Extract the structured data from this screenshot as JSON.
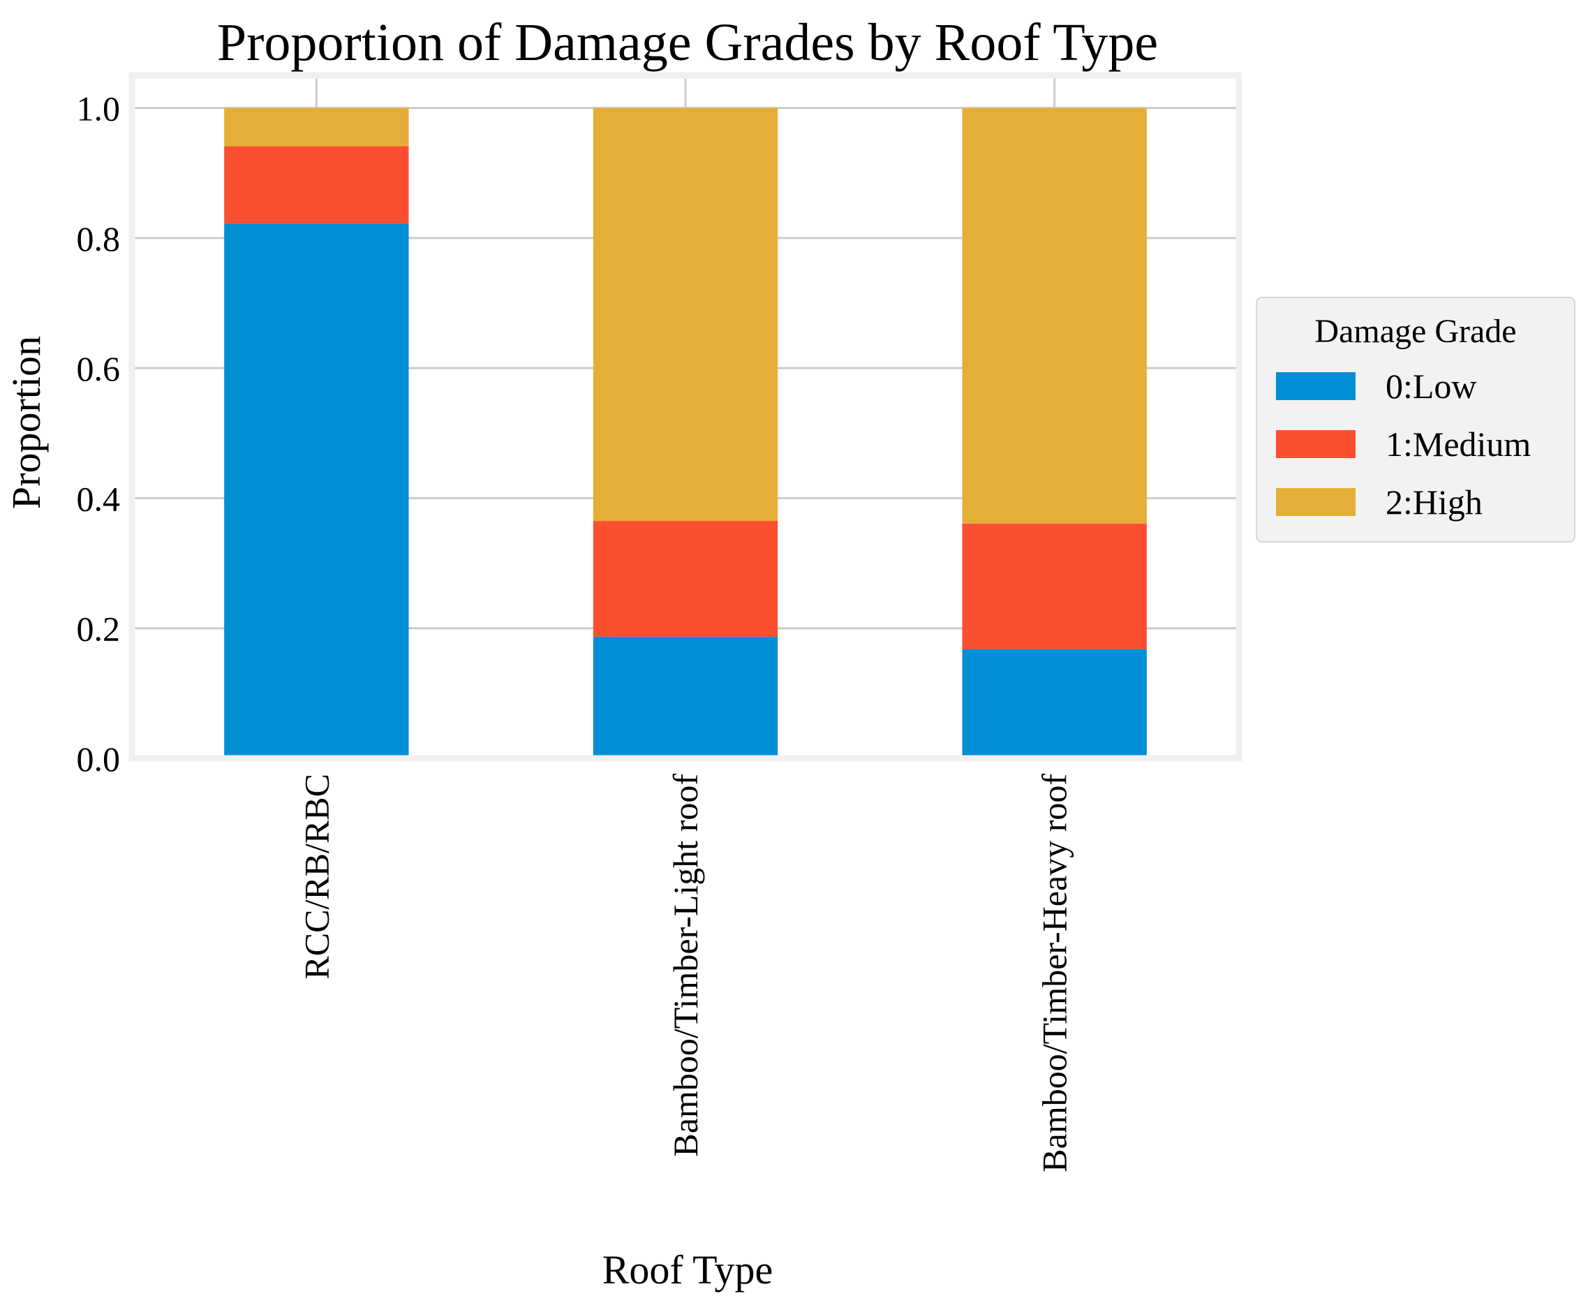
{
  "chart_data": {
    "type": "bar",
    "stacked": true,
    "title": "Proportion of Damage Grades by Roof Type",
    "xlabel": "Roof Type",
    "ylabel": "Proportion",
    "categories": [
      "RCC/RB/RBC",
      "Bamboo/Timber-Light roof",
      "Bamboo/Timber-Heavy roof"
    ],
    "series": [
      {
        "name": "0:Low",
        "color": "#008fd5",
        "values": [
          0.822,
          0.187,
          0.168
        ]
      },
      {
        "name": "1:Medium",
        "color": "#fc4f30",
        "values": [
          0.119,
          0.178,
          0.193
        ]
      },
      {
        "name": "2:High",
        "color": "#e5ae38",
        "values": [
          0.059,
          0.635,
          0.639
        ]
      }
    ],
    "ylim": [
      0,
      1.05
    ],
    "yticks": [
      0.0,
      0.2,
      0.4,
      0.6,
      0.8,
      1.0
    ],
    "ytick_labels": [
      "0.0",
      "0.2",
      "0.4",
      "0.6",
      "0.8",
      "1.0"
    ],
    "grid": true,
    "legend": {
      "title": "Damage Grade",
      "placement": "outside-right"
    },
    "colors": {
      "background": "#ffffff",
      "axes_border": "#f0f0f0",
      "grid": "#cbcbcb",
      "legend_background": "#f2f2f2"
    }
  }
}
